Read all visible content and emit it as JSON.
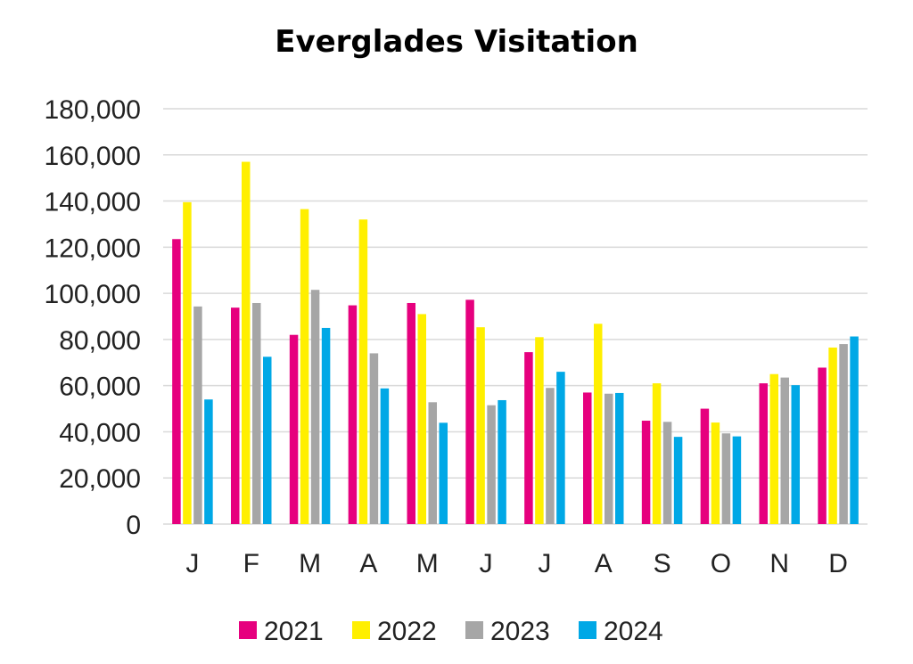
{
  "chart_data": {
    "type": "bar",
    "title": "Everglades Visitation",
    "xlabel": "",
    "ylabel": "",
    "ylim": [
      0,
      180000
    ],
    "yticks": [
      0,
      20000,
      40000,
      60000,
      80000,
      100000,
      120000,
      140000,
      160000,
      180000
    ],
    "ytick_labels": [
      "0",
      "20,000",
      "40,000",
      "60,000",
      "80,000",
      "100,000",
      "120,000",
      "140,000",
      "160,000",
      "180,000"
    ],
    "categories": [
      "J",
      "F",
      "M",
      "A",
      "M",
      "J",
      "J",
      "A",
      "S",
      "O",
      "N",
      "D"
    ],
    "grid": true,
    "legend_position": "bottom",
    "series": [
      {
        "name": "2021",
        "color": "#e6007e",
        "values": [
          123500,
          93800,
          82000,
          94800,
          95800,
          97200,
          74500,
          57000,
          44800,
          50000,
          61000,
          67800
        ]
      },
      {
        "name": "2022",
        "color": "#ffef00",
        "values": [
          139500,
          157000,
          136500,
          132000,
          91000,
          85300,
          81000,
          86800,
          61000,
          44000,
          65000,
          76500
        ]
      },
      {
        "name": "2023",
        "color": "#a6a6a6",
        "values": [
          94300,
          95800,
          101500,
          74000,
          52800,
          51500,
          59000,
          56500,
          44300,
          39300,
          63500,
          78000
        ]
      },
      {
        "name": "2024",
        "color": "#00a8e6",
        "values": [
          54000,
          72500,
          85000,
          58800,
          43900,
          53700,
          66000,
          56800,
          37800,
          38000,
          60200,
          81300
        ]
      }
    ]
  }
}
